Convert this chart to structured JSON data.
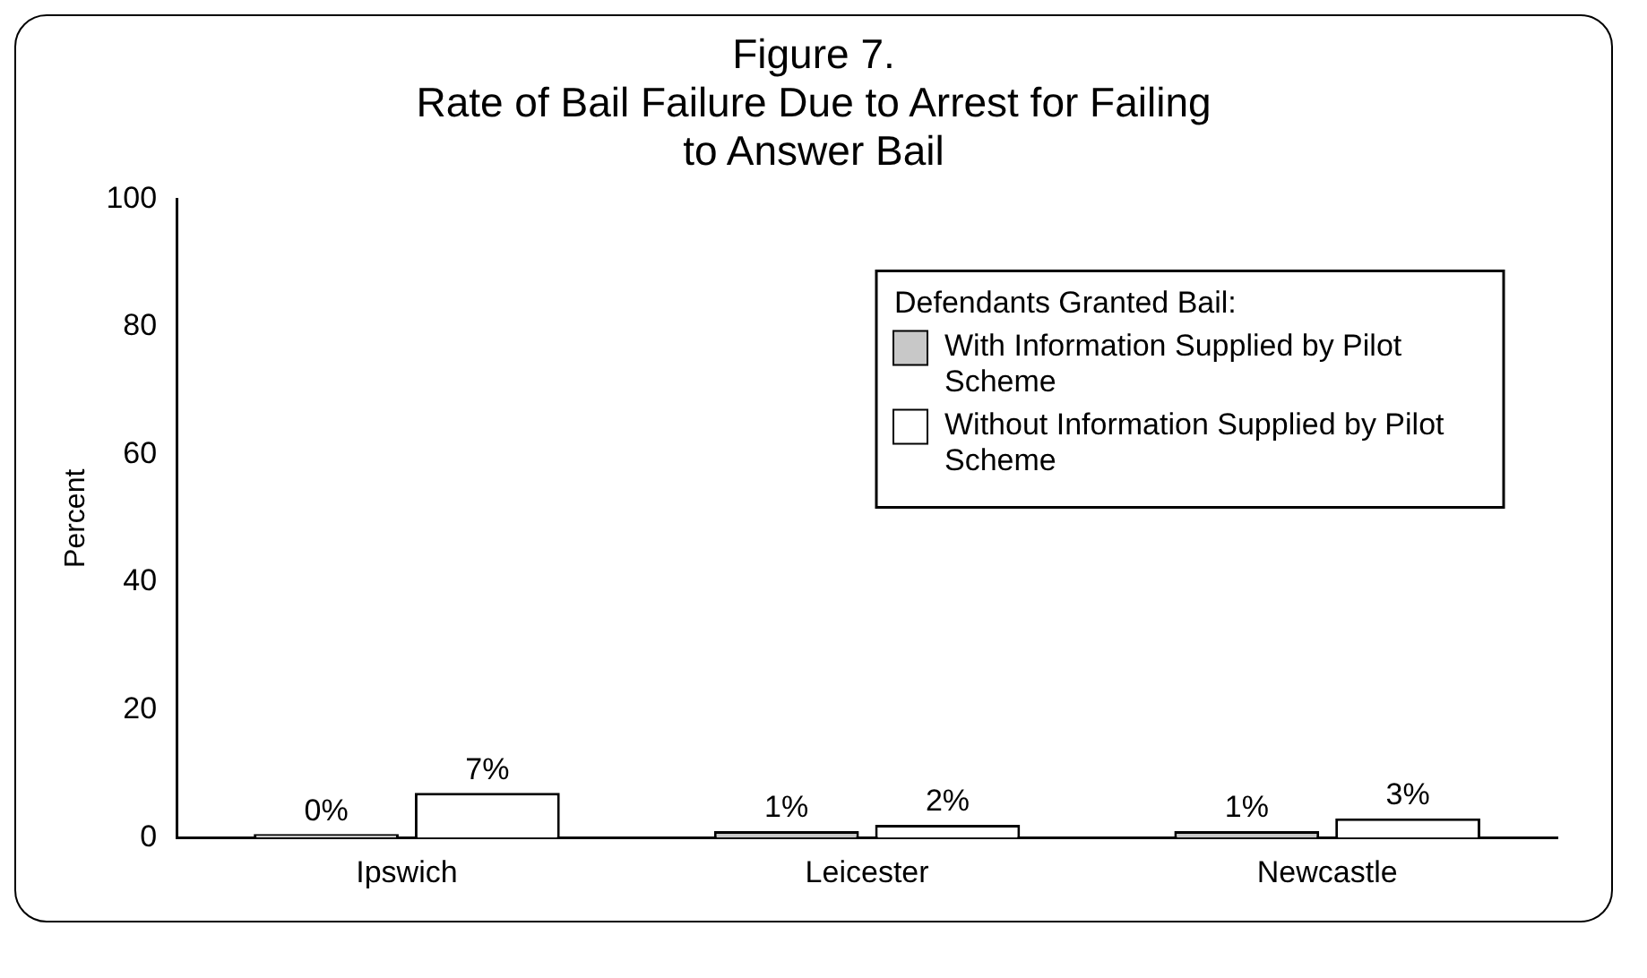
{
  "chart_data": {
    "type": "bar",
    "title": "Figure 7.",
    "subtitle": "Rate of Bail Failure Due to Arrest for Failing to Answer Bail",
    "ylabel": "Percent",
    "legend_title": "Defendants Granted Bail:",
    "categories": [
      "Ipswich",
      "Leicester",
      "Newcastle"
    ],
    "series": [
      {
        "name": "With Information Supplied by Pilot Scheme",
        "color": "#c8c8c8",
        "values": [
          0,
          1,
          1
        ],
        "value_labels": [
          "0%",
          "1%",
          "1%"
        ]
      },
      {
        "name": "Without Information Supplied by Pilot Scheme",
        "color": "#ffffff",
        "values": [
          7,
          2,
          3
        ],
        "value_labels": [
          "7%",
          "2%",
          "3%"
        ]
      }
    ],
    "ylim": [
      0,
      100
    ],
    "yticks": [
      0,
      20,
      40,
      60,
      80,
      100
    ],
    "grid": false,
    "legend": "top right"
  }
}
